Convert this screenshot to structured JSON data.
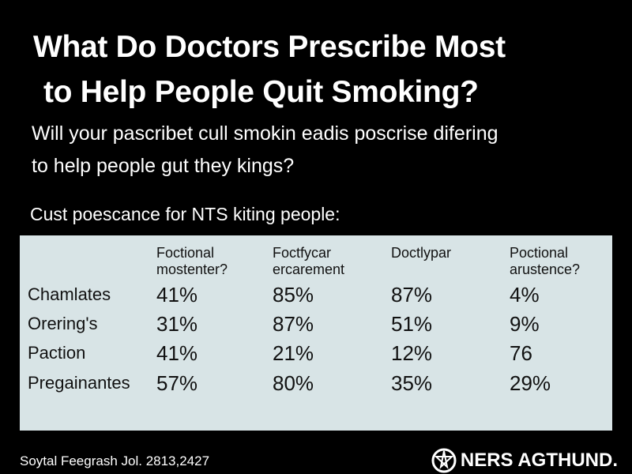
{
  "header": {
    "title": [
      "What Do Doctors Prescribe Most",
      "to Help People Quit Smoking?"
    ],
    "subtitle": [
      "Will your pascribet cull smokin eadis poscrise difering",
      "to help people gut they kings?"
    ],
    "table_caption": "Cust poescance for NTS kiting people:"
  },
  "table": {
    "columns": [
      "Foctional mostenter?",
      "Foctfycar ercarement",
      "Doctlypar",
      "Poctional arustence?"
    ],
    "rows": [
      [
        "Chamlates",
        "41%",
        "85%",
        "87%",
        "4%"
      ],
      [
        "Orering's",
        "31%",
        "87%",
        "51%",
        "9%"
      ],
      [
        "Paction",
        "41%",
        "21%",
        "12%",
        "76"
      ],
      [
        "Pregainantes",
        "57%",
        "80%",
        "35%",
        "29%"
      ]
    ]
  },
  "footer": {
    "source": "Soytal Feegrash Jol. 2813,2427",
    "logo": "NERS AGTHUND."
  }
}
